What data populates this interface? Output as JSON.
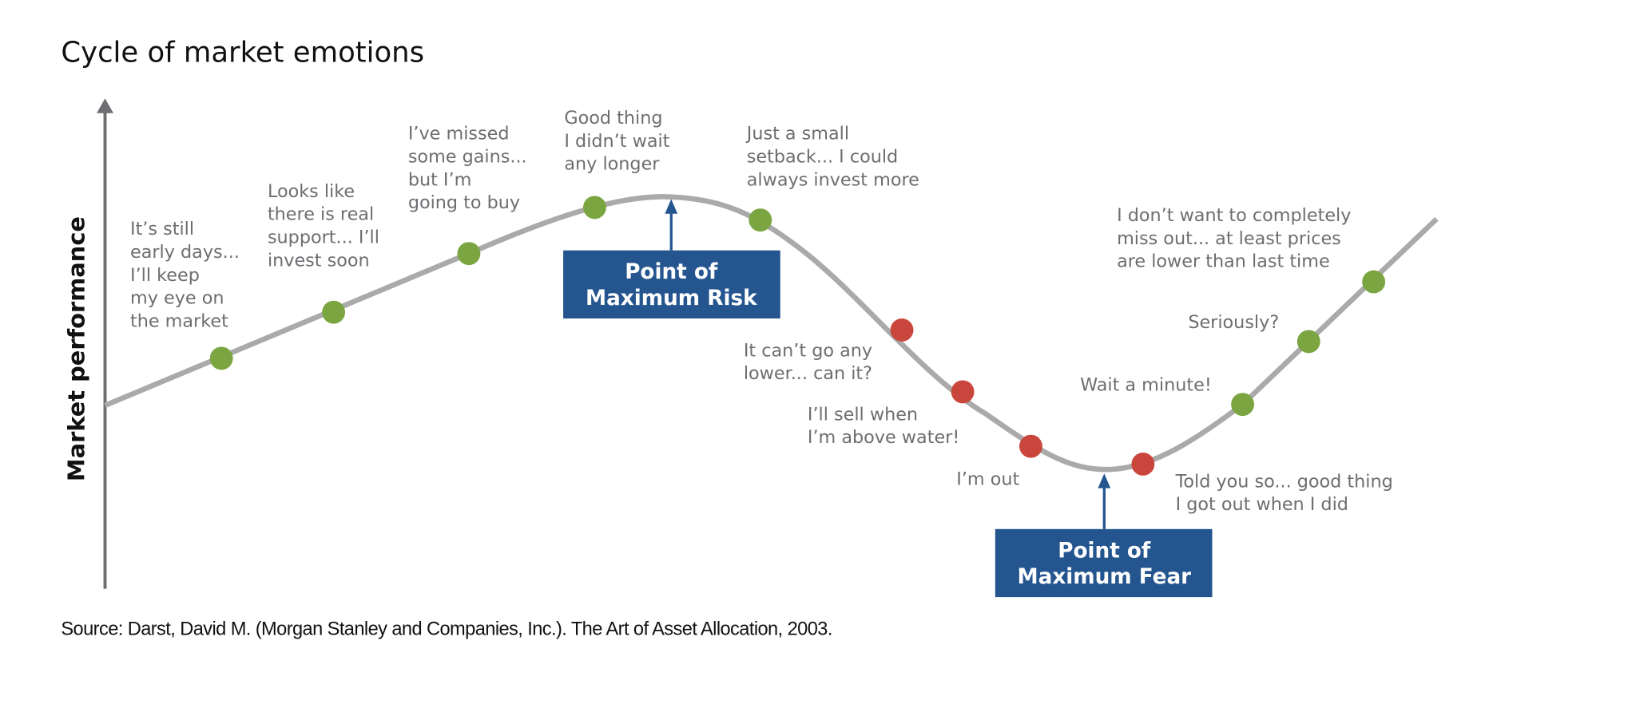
{
  "title": "Cycle of market emotions",
  "axis_label": "Market performance",
  "emotions": [
    {
      "lines": [
        "It’s still",
        "early days...",
        "I’ll keep",
        "my eye on",
        "the market"
      ]
    },
    {
      "lines": [
        "Looks like",
        "there is real",
        "support... I’ll",
        "invest soon"
      ]
    },
    {
      "lines": [
        "I’ve missed",
        "some gains...",
        "but I’m",
        "going to buy"
      ]
    },
    {
      "lines": [
        "Good thing",
        "I didn’t wait",
        "any longer"
      ]
    },
    {
      "lines": [
        "Just a small",
        "setback... I could",
        "always invest more"
      ]
    },
    {
      "lines": [
        "It can’t go any",
        "lower... can it?"
      ]
    },
    {
      "lines": [
        "I’ll sell when",
        "I’m above water!"
      ]
    },
    {
      "lines": [
        "I’m out"
      ]
    },
    {
      "lines": [
        "Told you so... good thing",
        "I got out when I did"
      ]
    },
    {
      "lines": [
        "Wait a minute!"
      ]
    },
    {
      "lines": [
        "Seriously?"
      ]
    },
    {
      "lines": [
        "I don’t want to completely",
        "miss out... at least prices",
        "are lower than last time"
      ]
    }
  ],
  "callouts": [
    {
      "lines": [
        "Point of",
        "Maximum Risk"
      ]
    },
    {
      "lines": [
        "Point of",
        "Maximum Fear"
      ]
    }
  ],
  "source": "Source: Darst, David M. (Morgan Stanley and Companies, Inc.). The Art of Asset Allocation, 2003."
}
